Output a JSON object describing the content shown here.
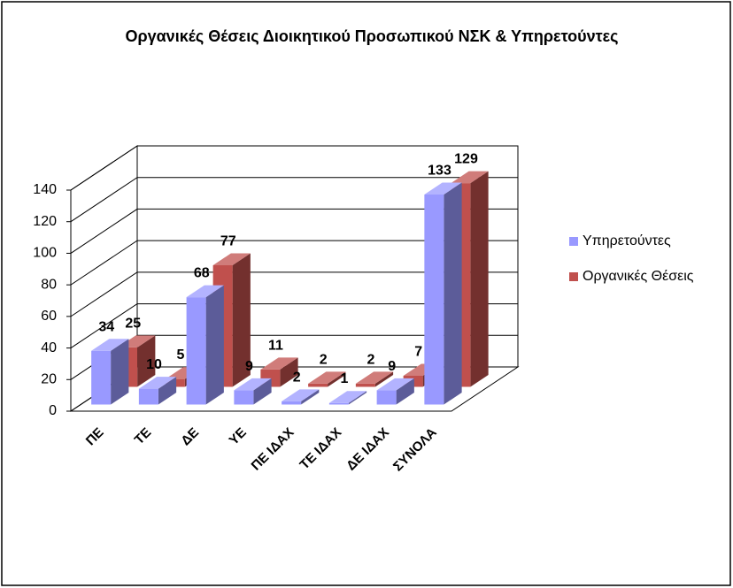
{
  "chart_data": {
    "type": "bar3d",
    "title": "Οργανικές Θέσεις  Διοικητικού Προσωπικού ΝΣΚ & Υπηρετούντες",
    "categories": [
      "ΠΕ",
      "ΤΕ",
      "ΔΕ",
      "ΥΕ",
      "ΠΕ ΙΔΑΧ",
      "ΤΕ ΙΔΑΧ",
      "ΔΕ ΙΔΑΧ",
      "ΣΥΝΟΛΑ"
    ],
    "series": [
      {
        "name": "Υπηρετούντες",
        "color": "#9999ff",
        "values": [
          34,
          10,
          68,
          9,
          2,
          1,
          9,
          133
        ]
      },
      {
        "name": "Οργανικές Θέσεις",
        "color": "#c0504d",
        "values": [
          25,
          5,
          77,
          11,
          2,
          2,
          7,
          129
        ]
      }
    ],
    "ylim": [
      0,
      140
    ],
    "yticks": [
      0,
      20,
      40,
      60,
      80,
      100,
      120,
      140
    ],
    "grid": true,
    "legend": "right"
  }
}
